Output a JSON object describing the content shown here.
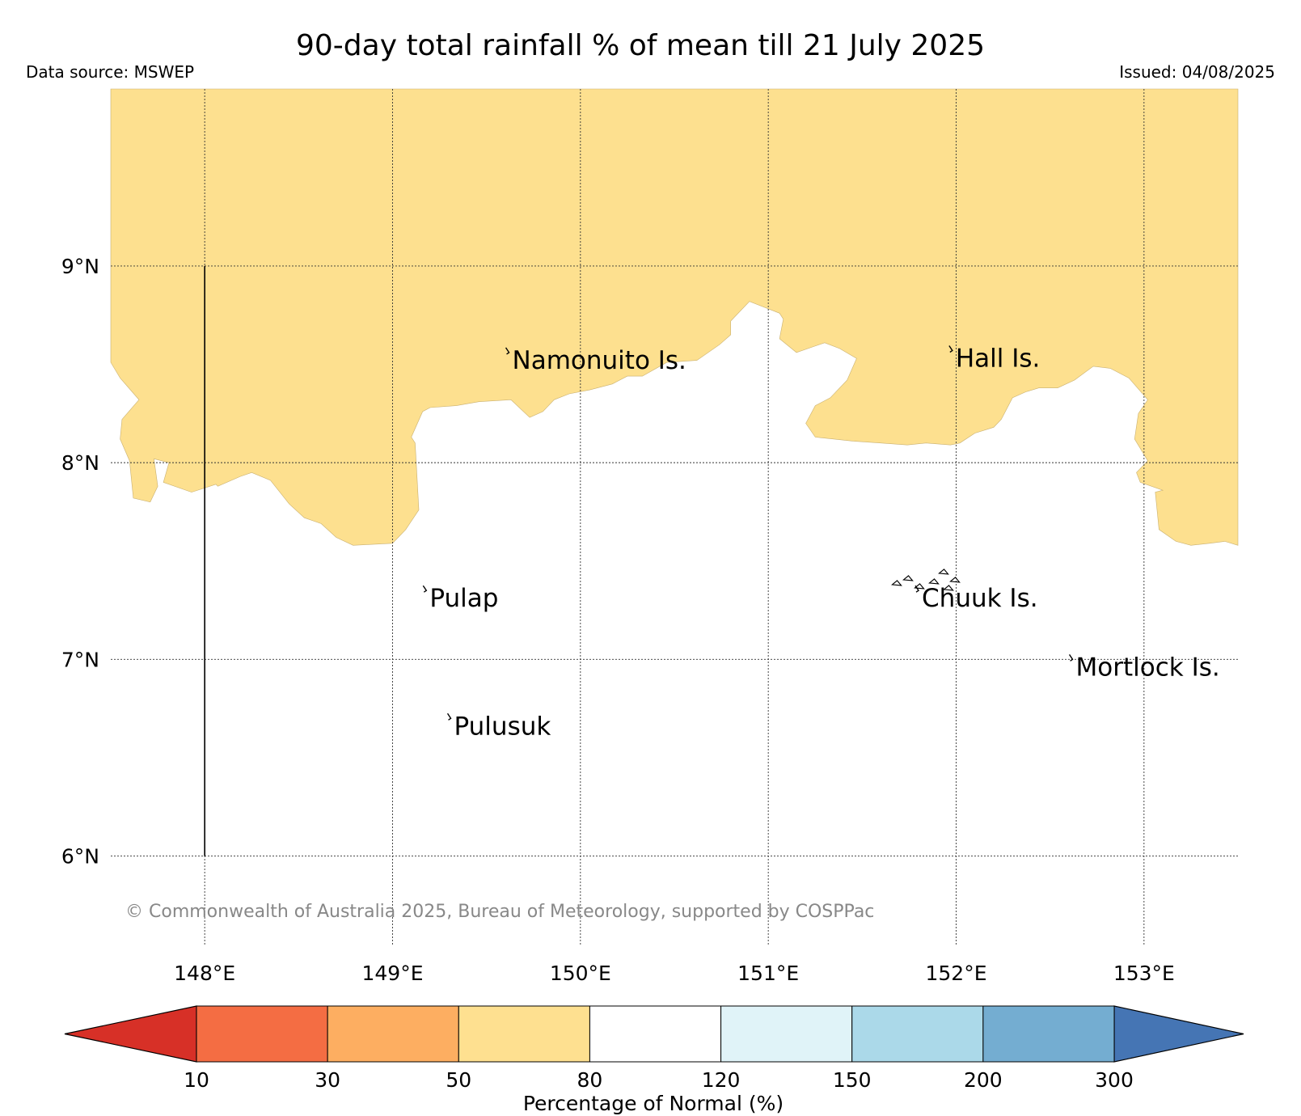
{
  "title": "90-day total rainfall % of mean till 21 July 2025",
  "data_source": "Data source: MSWEP",
  "issued": "Issued: 04/08/2025",
  "copyright": "© Commonwealth of Australia 2025, Bureau of Meteorology, supported by COSPPac",
  "map": {
    "lon_range": [
      147.5,
      153.5
    ],
    "lat_range": [
      5.55,
      9.9
    ],
    "lon_ticks": [
      {
        "value": 148,
        "label": "148°E"
      },
      {
        "value": 149,
        "label": "149°E"
      },
      {
        "value": 150,
        "label": "150°E"
      },
      {
        "value": 151,
        "label": "151°E"
      },
      {
        "value": 152,
        "label": "152°E"
      },
      {
        "value": 153,
        "label": "153°E"
      }
    ],
    "lat_ticks": [
      {
        "value": 9,
        "label": "9°N"
      },
      {
        "value": 8,
        "label": "8°N"
      },
      {
        "value": 7,
        "label": "7°N"
      },
      {
        "value": 6,
        "label": "6°N"
      }
    ],
    "grid": true,
    "shaded_category": "50-80",
    "shaded_color": "#fde08f",
    "boundary_line": {
      "lon": 148,
      "lat_from": 6,
      "lat_to": 9
    },
    "shaded_region_north_boundary": [
      [
        147.5,
        8.51
      ],
      [
        147.55,
        8.43
      ],
      [
        147.65,
        8.32
      ],
      [
        147.56,
        8.22
      ],
      [
        147.55,
        8.12
      ],
      [
        147.6,
        8.01
      ],
      [
        147.62,
        7.82
      ],
      [
        147.71,
        7.8
      ],
      [
        147.75,
        7.88
      ],
      [
        147.73,
        8.02
      ],
      [
        147.81,
        8.0
      ],
      [
        147.78,
        7.9
      ],
      [
        147.93,
        7.85
      ],
      [
        148.06,
        7.89
      ],
      [
        148.07,
        7.88
      ],
      [
        148.19,
        7.93
      ],
      [
        148.25,
        7.95
      ],
      [
        148.35,
        7.91
      ],
      [
        148.45,
        7.79
      ],
      [
        148.53,
        7.72
      ],
      [
        148.62,
        7.69
      ],
      [
        148.7,
        7.62
      ],
      [
        148.79,
        7.58
      ],
      [
        149.0,
        7.59
      ],
      [
        149.07,
        7.66
      ],
      [
        149.14,
        7.76
      ],
      [
        149.12,
        8.1
      ],
      [
        149.1,
        8.13
      ],
      [
        149.16,
        8.26
      ],
      [
        149.2,
        8.28
      ],
      [
        149.34,
        8.29
      ],
      [
        149.46,
        8.31
      ],
      [
        149.63,
        8.32
      ],
      [
        149.73,
        8.23
      ],
      [
        149.8,
        8.26
      ],
      [
        149.86,
        8.32
      ],
      [
        149.94,
        8.35
      ],
      [
        150.05,
        8.37
      ],
      [
        150.17,
        8.4
      ],
      [
        150.25,
        8.44
      ],
      [
        150.33,
        8.44
      ],
      [
        150.46,
        8.51
      ],
      [
        150.62,
        8.52
      ],
      [
        150.74,
        8.6
      ],
      [
        150.8,
        8.65
      ],
      [
        150.8,
        8.72
      ],
      [
        150.9,
        8.82
      ],
      [
        151.06,
        8.76
      ],
      [
        151.08,
        8.73
      ],
      [
        151.06,
        8.63
      ],
      [
        151.15,
        8.56
      ],
      [
        151.24,
        8.59
      ],
      [
        151.3,
        8.61
      ],
      [
        151.38,
        8.58
      ],
      [
        151.47,
        8.53
      ],
      [
        151.42,
        8.42
      ],
      [
        151.33,
        8.33
      ],
      [
        151.25,
        8.29
      ],
      [
        151.2,
        8.2
      ],
      [
        151.25,
        8.13
      ],
      [
        151.35,
        8.12
      ],
      [
        151.45,
        8.11
      ],
      [
        151.6,
        8.1
      ],
      [
        151.74,
        8.09
      ],
      [
        151.84,
        8.1
      ],
      [
        151.97,
        8.09
      ],
      [
        152.02,
        8.1
      ],
      [
        152.1,
        8.15
      ],
      [
        152.2,
        8.18
      ],
      [
        152.24,
        8.22
      ],
      [
        152.3,
        8.33
      ],
      [
        152.37,
        8.36
      ],
      [
        152.44,
        8.38
      ],
      [
        152.54,
        8.38
      ],
      [
        152.63,
        8.42
      ],
      [
        152.73,
        8.49
      ],
      [
        152.82,
        8.48
      ],
      [
        152.92,
        8.43
      ],
      [
        153.02,
        8.32
      ],
      [
        152.97,
        8.25
      ],
      [
        152.95,
        8.12
      ],
      [
        153.02,
        8.01
      ],
      [
        152.96,
        7.95
      ],
      [
        152.98,
        7.9
      ],
      [
        153.1,
        7.86
      ],
      [
        153.06,
        7.85
      ],
      [
        153.08,
        7.66
      ],
      [
        153.17,
        7.6
      ],
      [
        153.25,
        7.58
      ],
      [
        153.35,
        7.59
      ],
      [
        153.43,
        7.6
      ],
      [
        153.5,
        7.58
      ]
    ],
    "islands": [
      {
        "name": "Namonuito Is.",
        "lon": 149.62,
        "lat": 8.56
      },
      {
        "name": "Hall Is.",
        "lon": 151.98,
        "lat": 8.57
      },
      {
        "name": "Pulap",
        "lon": 149.18,
        "lat": 7.35
      },
      {
        "name": "Chuuk Is.",
        "lon": 151.8,
        "lat": 7.35
      },
      {
        "name": "Mortlock Is.",
        "lon": 152.62,
        "lat": 7.0
      },
      {
        "name": "Pulusuk",
        "lon": 149.31,
        "lat": 6.7
      }
    ]
  },
  "colorbar": {
    "label": "Percentage of Normal (%)",
    "ticks": [
      "10",
      "30",
      "50",
      "80",
      "120",
      "150",
      "200",
      "300"
    ],
    "under_color": "#d73027",
    "over_color": "#4575b4",
    "bins": [
      {
        "range": "10-30",
        "color": "#f46d43"
      },
      {
        "range": "30-50",
        "color": "#fdae61"
      },
      {
        "range": "50-80",
        "color": "#fee090"
      },
      {
        "range": "80-120",
        "color": "#ffffff"
      },
      {
        "range": "120-150",
        "color": "#e0f3f8"
      },
      {
        "range": "150-200",
        "color": "#abd9e9"
      },
      {
        "range": "200-300",
        "color": "#74add1"
      }
    ]
  }
}
